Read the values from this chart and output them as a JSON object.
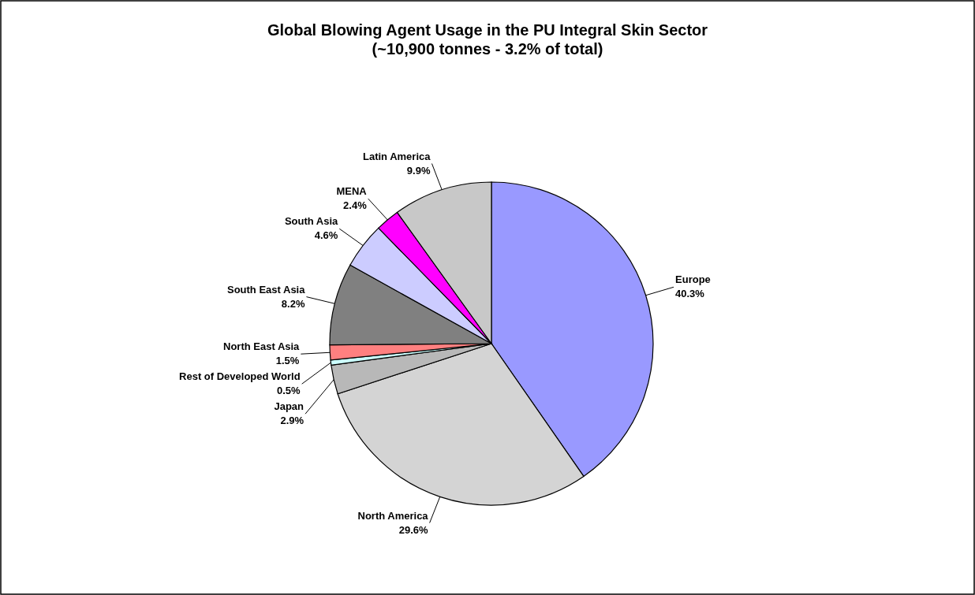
{
  "chart_data": {
    "type": "pie",
    "title": "Global Blowing Agent Usage in the PU Integral Skin Sector",
    "subtitle": "(~10,900 tonnes - 3.2% of total)",
    "categories": [
      "Europe",
      "North America",
      "Japan",
      "Rest of Developed World",
      "North East Asia",
      "South East Asia",
      "South Asia",
      "MENA",
      "Latin America"
    ],
    "values": [
      40.3,
      29.6,
      2.9,
      0.5,
      1.5,
      8.2,
      4.6,
      2.4,
      9.9
    ],
    "value_labels": [
      "40.3%",
      "29.6%",
      "2.9%",
      "0.5%",
      "1.5%",
      "8.2%",
      "4.6%",
      "2.4%",
      "9.9%"
    ],
    "colors": [
      "#9999ff",
      "#d4d4d4",
      "#b8b8b8",
      "#ccffff",
      "#ff8080",
      "#808080",
      "#ccccff",
      "#ff00ff",
      "#c8c8c8"
    ],
    "legend": false
  }
}
